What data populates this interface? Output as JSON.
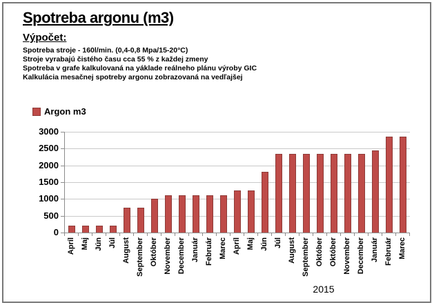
{
  "header": {
    "title": "Spotreba argonu (m3)",
    "subtitle": "Výpočet:",
    "info_lines": [
      "Spotreba stroje - 160l/min. (0,4-0,8 Mpa/15-20°C)",
      "Stroje vyrabajú čistého času cca 55 % z každej zmeny",
      "Spotreba v grafe kalkulovaná na yáklade reálneho plánu výroby GIC",
      "Kalkulácia mesačnej spotreby argonu zobrazovaná na vedľajšej"
    ]
  },
  "legend": {
    "label": "Argon m3",
    "swatch_color": "#be4b48",
    "swatch_border": "#8e3b38"
  },
  "chart_data": {
    "type": "bar",
    "title": "Spotreba argonu (m3)",
    "series_name": "Argon m3",
    "categories": [
      "Apríl",
      "Maj",
      "Jún",
      "Júl",
      "August",
      "September",
      "Október",
      "November",
      "December",
      "Január",
      "Február",
      "Marec",
      "Apríl",
      "Maj",
      "Jún",
      "Júl",
      "August",
      "September",
      "Október",
      "Október",
      "November",
      "December",
      "Január",
      "Február",
      "Marec"
    ],
    "values": [
      200,
      200,
      200,
      200,
      730,
      730,
      1000,
      1100,
      1100,
      1100,
      1100,
      1100,
      1250,
      1250,
      1800,
      2350,
      2350,
      2350,
      2350,
      2350,
      2350,
      2350,
      2450,
      2850,
      2850
    ],
    "xlabel": "",
    "ylabel": "",
    "ylim": [
      0,
      3000
    ],
    "yticks": [
      0,
      500,
      1000,
      1500,
      2000,
      2500,
      3000
    ],
    "grid": true,
    "legend_position": "top-left",
    "x_label_rotation": 90,
    "year_label": "2015",
    "bar_color": "#be4b48",
    "bar_border_color": "#8e3b38",
    "gridline_color": "#c9c9c9",
    "axis_color": "#8c8c8c"
  }
}
